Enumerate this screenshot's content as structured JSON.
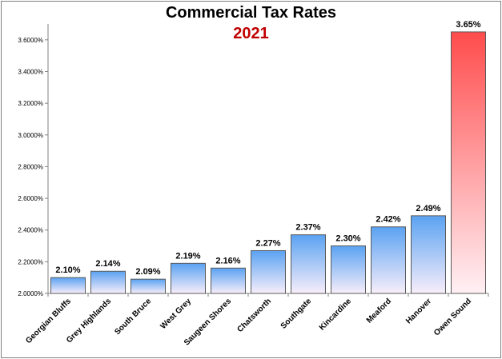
{
  "colors": {
    "bar_top": "#5aa2f2",
    "bar_bottom": "#f8eefa",
    "highlight_top": "#ff4c4c",
    "highlight_bottom": "#fff0f4",
    "title": "#000000",
    "subtitle": "#c00000"
  },
  "chart_data": {
    "type": "bar",
    "title": "Commercial Tax Rates",
    "subtitle": "2021",
    "categories": [
      "Georgian Bluffs",
      "Grey Highlands",
      "South Bruce",
      "West Grey",
      "Saugeen Shores",
      "Chatsworth",
      "Southgate",
      "Kincardine",
      "Meaford",
      "Hanover",
      "Owen Sound"
    ],
    "values": [
      2.1,
      2.14,
      2.09,
      2.19,
      2.16,
      2.27,
      2.37,
      2.3,
      2.42,
      2.49,
      3.65
    ],
    "data_labels": [
      "2.10%",
      "2.14%",
      "2.09%",
      "2.19%",
      "2.16%",
      "2.27%",
      "2.37%",
      "2.30%",
      "2.42%",
      "2.49%",
      "3.65%"
    ],
    "highlighted_category": "Owen Sound",
    "ylim": [
      2.0,
      3.7
    ],
    "yticks": [
      2.0,
      2.2,
      2.4,
      2.6,
      2.8,
      3.0,
      3.2,
      3.4,
      3.6
    ],
    "ytick_labels": [
      "2.0000%",
      "2.2000%",
      "2.4000%",
      "2.6000%",
      "2.8000%",
      "3.0000%",
      "3.2000%",
      "3.4000%",
      "3.6000%"
    ],
    "xlabel": "",
    "ylabel": "",
    "grid": false,
    "legend": "none"
  }
}
